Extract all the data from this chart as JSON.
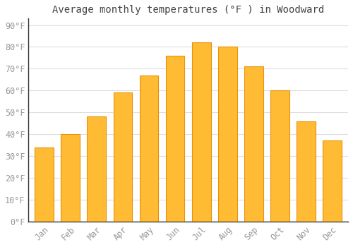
{
  "title": "Average monthly temperatures (°F ) in Woodward",
  "months": [
    "Jan",
    "Feb",
    "Mar",
    "Apr",
    "May",
    "Jun",
    "Jul",
    "Aug",
    "Sep",
    "Oct",
    "Nov",
    "Dec"
  ],
  "values": [
    34,
    40,
    48,
    59,
    67,
    76,
    82,
    80,
    71,
    60,
    46,
    37
  ],
  "bar_color": "#FFBB33",
  "bar_edge_color": "#E8920A",
  "background_color": "#FFFFFF",
  "grid_color": "#DDDDDD",
  "axis_color": "#333333",
  "tick_color": "#999999",
  "ylim": [
    0,
    93
  ],
  "yticks": [
    0,
    10,
    20,
    30,
    40,
    50,
    60,
    70,
    80,
    90
  ],
  "ytick_labels": [
    "0°F",
    "10°F",
    "20°F",
    "30°F",
    "40°F",
    "50°F",
    "60°F",
    "70°F",
    "80°F",
    "90°F"
  ],
  "title_fontsize": 10,
  "tick_fontsize": 8.5,
  "font_family": "monospace"
}
